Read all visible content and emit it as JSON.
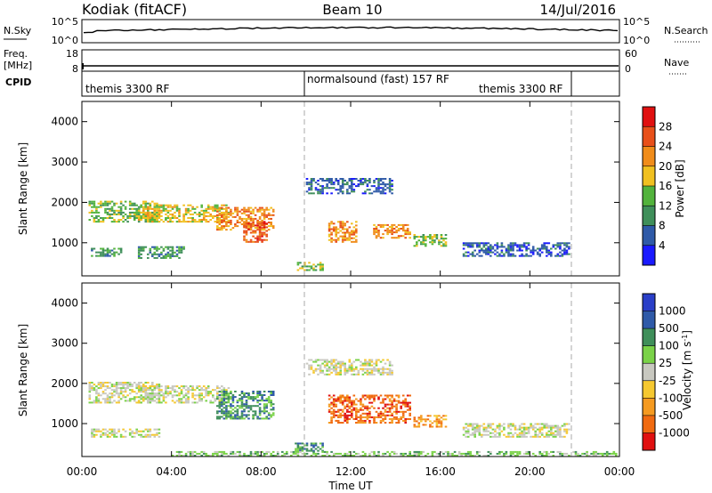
{
  "header": {
    "station": "Kodiak (fitACF)",
    "beam": "Beam 10",
    "date": "14/Jul/2016"
  },
  "top_panels": {
    "nsky": {
      "label": "N.Sky",
      "tick_top": "10^5",
      "tick_bottom": "10^0",
      "right_label": "N.Search",
      "right_tick_top": "10^5",
      "right_tick_bottom": "10^0"
    },
    "freq": {
      "label_line1": "Freq.",
      "label_line2": "[MHz]",
      "tick_top": "18",
      "tick_bottom": "8",
      "right_label": "Nave",
      "right_tick_top": "60",
      "right_tick_bottom": "0"
    },
    "cpid": {
      "label": "CPID",
      "segments": [
        {
          "name": "themis 3300 RF",
          "start": 0,
          "end": 10
        },
        {
          "name": "normalsound (fast) 157 RF",
          "start": 10,
          "end": 22
        },
        {
          "name": "themis 3300 RF",
          "start": 22,
          "end": 24
        }
      ]
    }
  },
  "colors": {
    "power": [
      "#1a1aff",
      "#2f5aa8",
      "#3f8f5a",
      "#52b33c",
      "#f0c020",
      "#f08c1a",
      "#e8501a",
      "#e01010"
    ],
    "velocity": [
      "#e01010",
      "#f06a10",
      "#f59a20",
      "#f5c830",
      "#c8c8c0",
      "#7ad248",
      "#3f8f5a",
      "#2f5aa8",
      "#2a3fc8"
    ]
  },
  "chart_data": [
    {
      "type": "heatmap",
      "title": "Power",
      "ylabel": "Slant Range [km]",
      "xlabel": "Time UT",
      "x_ticks": [
        "00:00",
        "04:00",
        "08:00",
        "12:00",
        "16:00",
        "20:00",
        "00:00"
      ],
      "y_ticks": [
        "1000",
        "2000",
        "3000",
        "4000"
      ],
      "xlim_hours": [
        0,
        24
      ],
      "ylim_km": [
        180,
        4500
      ],
      "colorbar": {
        "label": "Power [dB]",
        "ticks": [
          "4",
          "8",
          "12",
          "16",
          "20",
          "24",
          "28"
        ],
        "range": [
          0,
          32
        ]
      },
      "mode_change_lines_hours": [
        10,
        22
      ],
      "echo_regions": [
        {
          "t0": 0.3,
          "t1": 3.5,
          "r0": 1500,
          "r1": 2000,
          "level": 3
        },
        {
          "t0": 2.5,
          "t1": 6.5,
          "r0": 1500,
          "r1": 1950,
          "level": 4
        },
        {
          "t0": 6.0,
          "t1": 8.5,
          "r0": 1300,
          "r1": 1850,
          "level": 5
        },
        {
          "t0": 7.2,
          "t1": 8.2,
          "r0": 1000,
          "r1": 1500,
          "level": 6
        },
        {
          "t0": 0.4,
          "t1": 1.8,
          "r0": 650,
          "r1": 850,
          "level": 2
        },
        {
          "t0": 2.5,
          "t1": 4.5,
          "r0": 600,
          "r1": 900,
          "level": 2
        },
        {
          "t0": 9.5,
          "t1": 10.7,
          "r0": 300,
          "r1": 500,
          "level": 3
        },
        {
          "t0": 10.0,
          "t1": 13.8,
          "r0": 2200,
          "r1": 2600,
          "level": 1
        },
        {
          "t0": 11.0,
          "t1": 12.2,
          "r0": 1000,
          "r1": 1500,
          "level": 5
        },
        {
          "t0": 13.0,
          "t1": 14.6,
          "r0": 1100,
          "r1": 1450,
          "level": 5
        },
        {
          "t0": 14.8,
          "t1": 16.3,
          "r0": 900,
          "r1": 1200,
          "level": 3
        },
        {
          "t0": 17.0,
          "t1": 21.8,
          "r0": 650,
          "r1": 1000,
          "level": 1
        }
      ]
    },
    {
      "type": "heatmap",
      "title": "Velocity",
      "ylabel": "Slant Range [km]",
      "xlabel": "Time UT",
      "x_ticks": [
        "00:00",
        "04:00",
        "08:00",
        "12:00",
        "16:00",
        "20:00",
        "00:00"
      ],
      "y_ticks": [
        "1000",
        "2000",
        "3000",
        "4000"
      ],
      "xlim_hours": [
        0,
        24
      ],
      "ylim_km": [
        180,
        4500
      ],
      "colorbar": {
        "label": "Velocity [m s^-1]",
        "ticks": [
          "-1000",
          "-500",
          "-100",
          "-25",
          "25",
          "100",
          "500",
          "1000"
        ]
      },
      "mode_change_lines_hours": [
        10,
        22
      ],
      "echo_regions": [
        {
          "t0": 0.3,
          "t1": 3.5,
          "r0": 1500,
          "r1": 2000,
          "vel": 4
        },
        {
          "t0": 2.5,
          "t1": 6.5,
          "r0": 1500,
          "r1": 1950,
          "vel": 4
        },
        {
          "t0": 6.0,
          "t1": 8.5,
          "r0": 1100,
          "r1": 1800,
          "vel": 6
        },
        {
          "t0": 0.4,
          "t1": 3.5,
          "r0": 650,
          "r1": 850,
          "vel": 4
        },
        {
          "t0": 9.5,
          "t1": 10.7,
          "r0": 300,
          "r1": 500,
          "vel": 6
        },
        {
          "t0": 10.0,
          "t1": 13.8,
          "r0": 2200,
          "r1": 2600,
          "vel": 4
        },
        {
          "t0": 11.0,
          "t1": 14.6,
          "r0": 1000,
          "r1": 1700,
          "vel": 1
        },
        {
          "t0": 14.8,
          "t1": 16.3,
          "r0": 900,
          "r1": 1200,
          "vel": 2
        },
        {
          "t0": 17.0,
          "t1": 21.8,
          "r0": 650,
          "r1": 1000,
          "vel": 4
        },
        {
          "t0": 4.0,
          "t1": 24.0,
          "r0": 180,
          "r1": 300,
          "vel": 5
        }
      ]
    }
  ]
}
